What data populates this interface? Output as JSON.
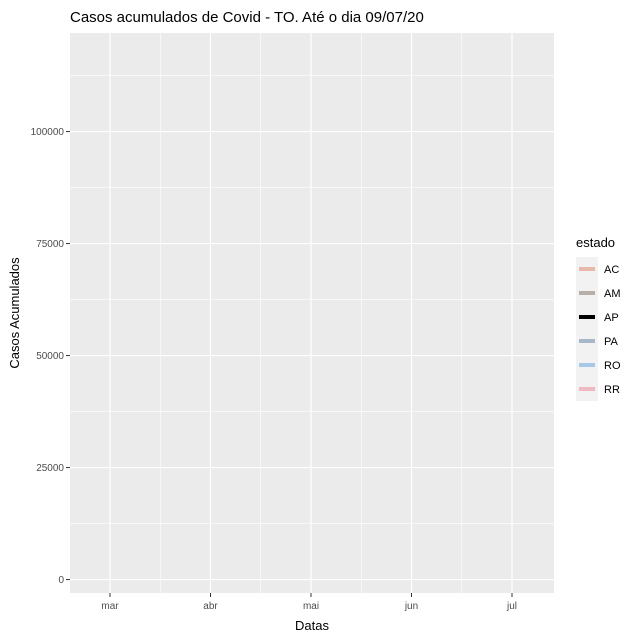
{
  "chart_data": {
    "type": "line",
    "title": "Casos acumulados de Covid - TO. Até o dia 09/07/20",
    "xlabel": "Datas",
    "ylabel": "Casos Acumulados",
    "x_ticks": [
      "mar",
      "abr",
      "mai",
      "jun",
      "jul"
    ],
    "y_ticks": [
      0,
      25000,
      50000,
      75000,
      100000
    ],
    "y_tick_labels": [
      "0",
      "25000",
      "50000",
      "75000",
      "100000"
    ],
    "ylim": [
      -3000,
      122000
    ],
    "grid": true,
    "legend": {
      "title": "estado",
      "position": "right",
      "entries": [
        {
          "name": "AC",
          "color": "#e8b8a8"
        },
        {
          "name": "AM",
          "color": "#b8b0a8"
        },
        {
          "name": "AP",
          "color": "#000000"
        },
        {
          "name": "PA",
          "color": "#a8b8c8"
        },
        {
          "name": "RO",
          "color": "#a8c8e8"
        },
        {
          "name": "RR",
          "color": "#f0b8c0"
        }
      ]
    },
    "series": [
      {
        "name": "AC",
        "values": []
      },
      {
        "name": "AM",
        "values": []
      },
      {
        "name": "AP",
        "values": []
      },
      {
        "name": "PA",
        "values": []
      },
      {
        "name": "RO",
        "values": []
      },
      {
        "name": "RR",
        "values": []
      }
    ],
    "colors": {
      "panel_bg": "#ebebeb",
      "grid_major": "#ffffff",
      "legend_key_bg": "#f2f2f2"
    }
  }
}
